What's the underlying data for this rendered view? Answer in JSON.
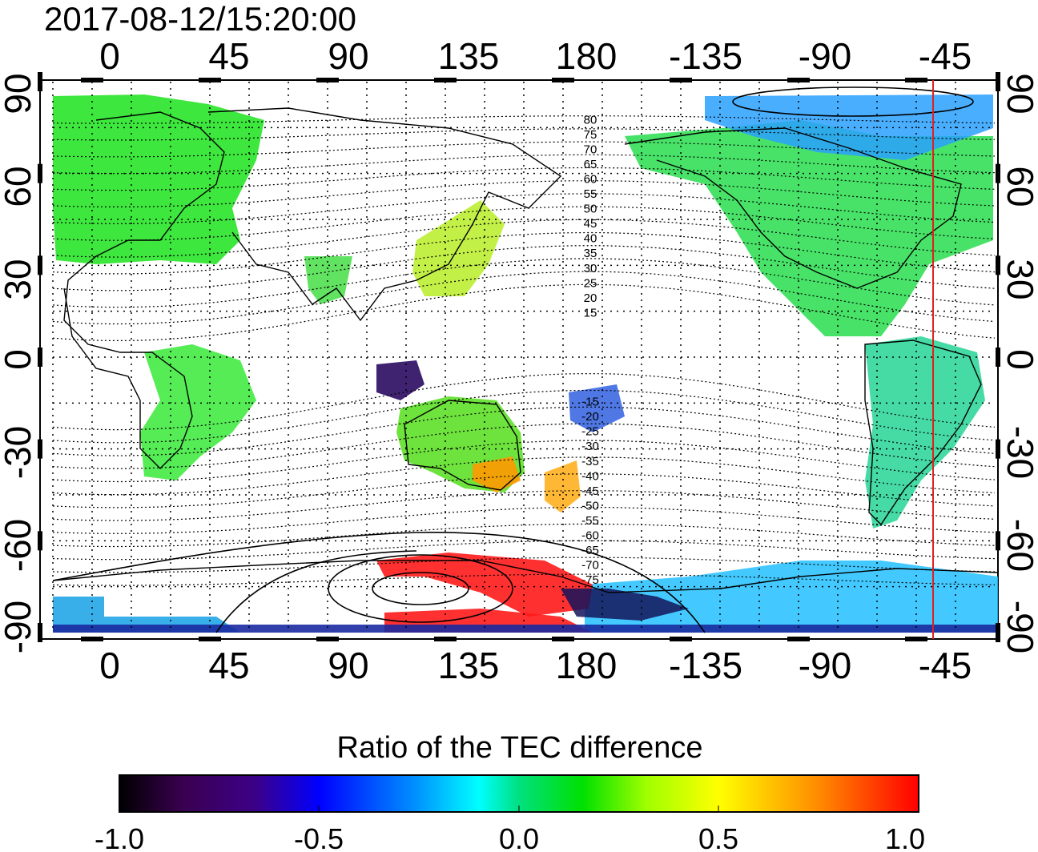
{
  "timestamp": "2017-08-12/15:20:00",
  "map": {
    "projection": "equirectangular",
    "central_longitude": 150,
    "top_axis_labels": [
      "0",
      "45",
      "90",
      "135",
      "180",
      "-135",
      "-90",
      "-45"
    ],
    "bottom_axis_labels": [
      "0",
      "45",
      "90",
      "135",
      "180",
      "-135",
      "-90",
      "-45"
    ],
    "left_axis_labels": [
      "90",
      "60",
      "30",
      "0",
      "-30",
      "-60",
      "-90"
    ],
    "right_axis_labels": [
      "90",
      "60",
      "30",
      "0",
      "-30",
      "-60",
      "-90"
    ],
    "magnetic_latitude_labels": [
      "80",
      "75",
      "70",
      "65",
      "60",
      "55",
      "50",
      "45",
      "40",
      "35",
      "30",
      "25",
      "20",
      "15",
      "-15",
      "-20",
      "-25",
      "-30",
      "-35",
      "-40",
      "-45",
      "-50",
      "-55",
      "-60",
      "-65",
      "-70",
      "-75"
    ],
    "marker_line_color": "#e02020",
    "grid": "dotted, every 15 degrees"
  },
  "colorbar": {
    "title": "Ratio of the TEC difference",
    "tick_labels": [
      "-1.0",
      "-0.5",
      "0.0",
      "0.5",
      "1.0"
    ],
    "range": [
      -1.0,
      1.0
    ],
    "colors": [
      "#000000",
      "#3a0050",
      "#3c0088",
      "#0000ff",
      "#0090ff",
      "#00ffff",
      "#00e080",
      "#00e000",
      "#a0ff00",
      "#ffff00",
      "#ff9000",
      "#ff0000"
    ]
  }
}
